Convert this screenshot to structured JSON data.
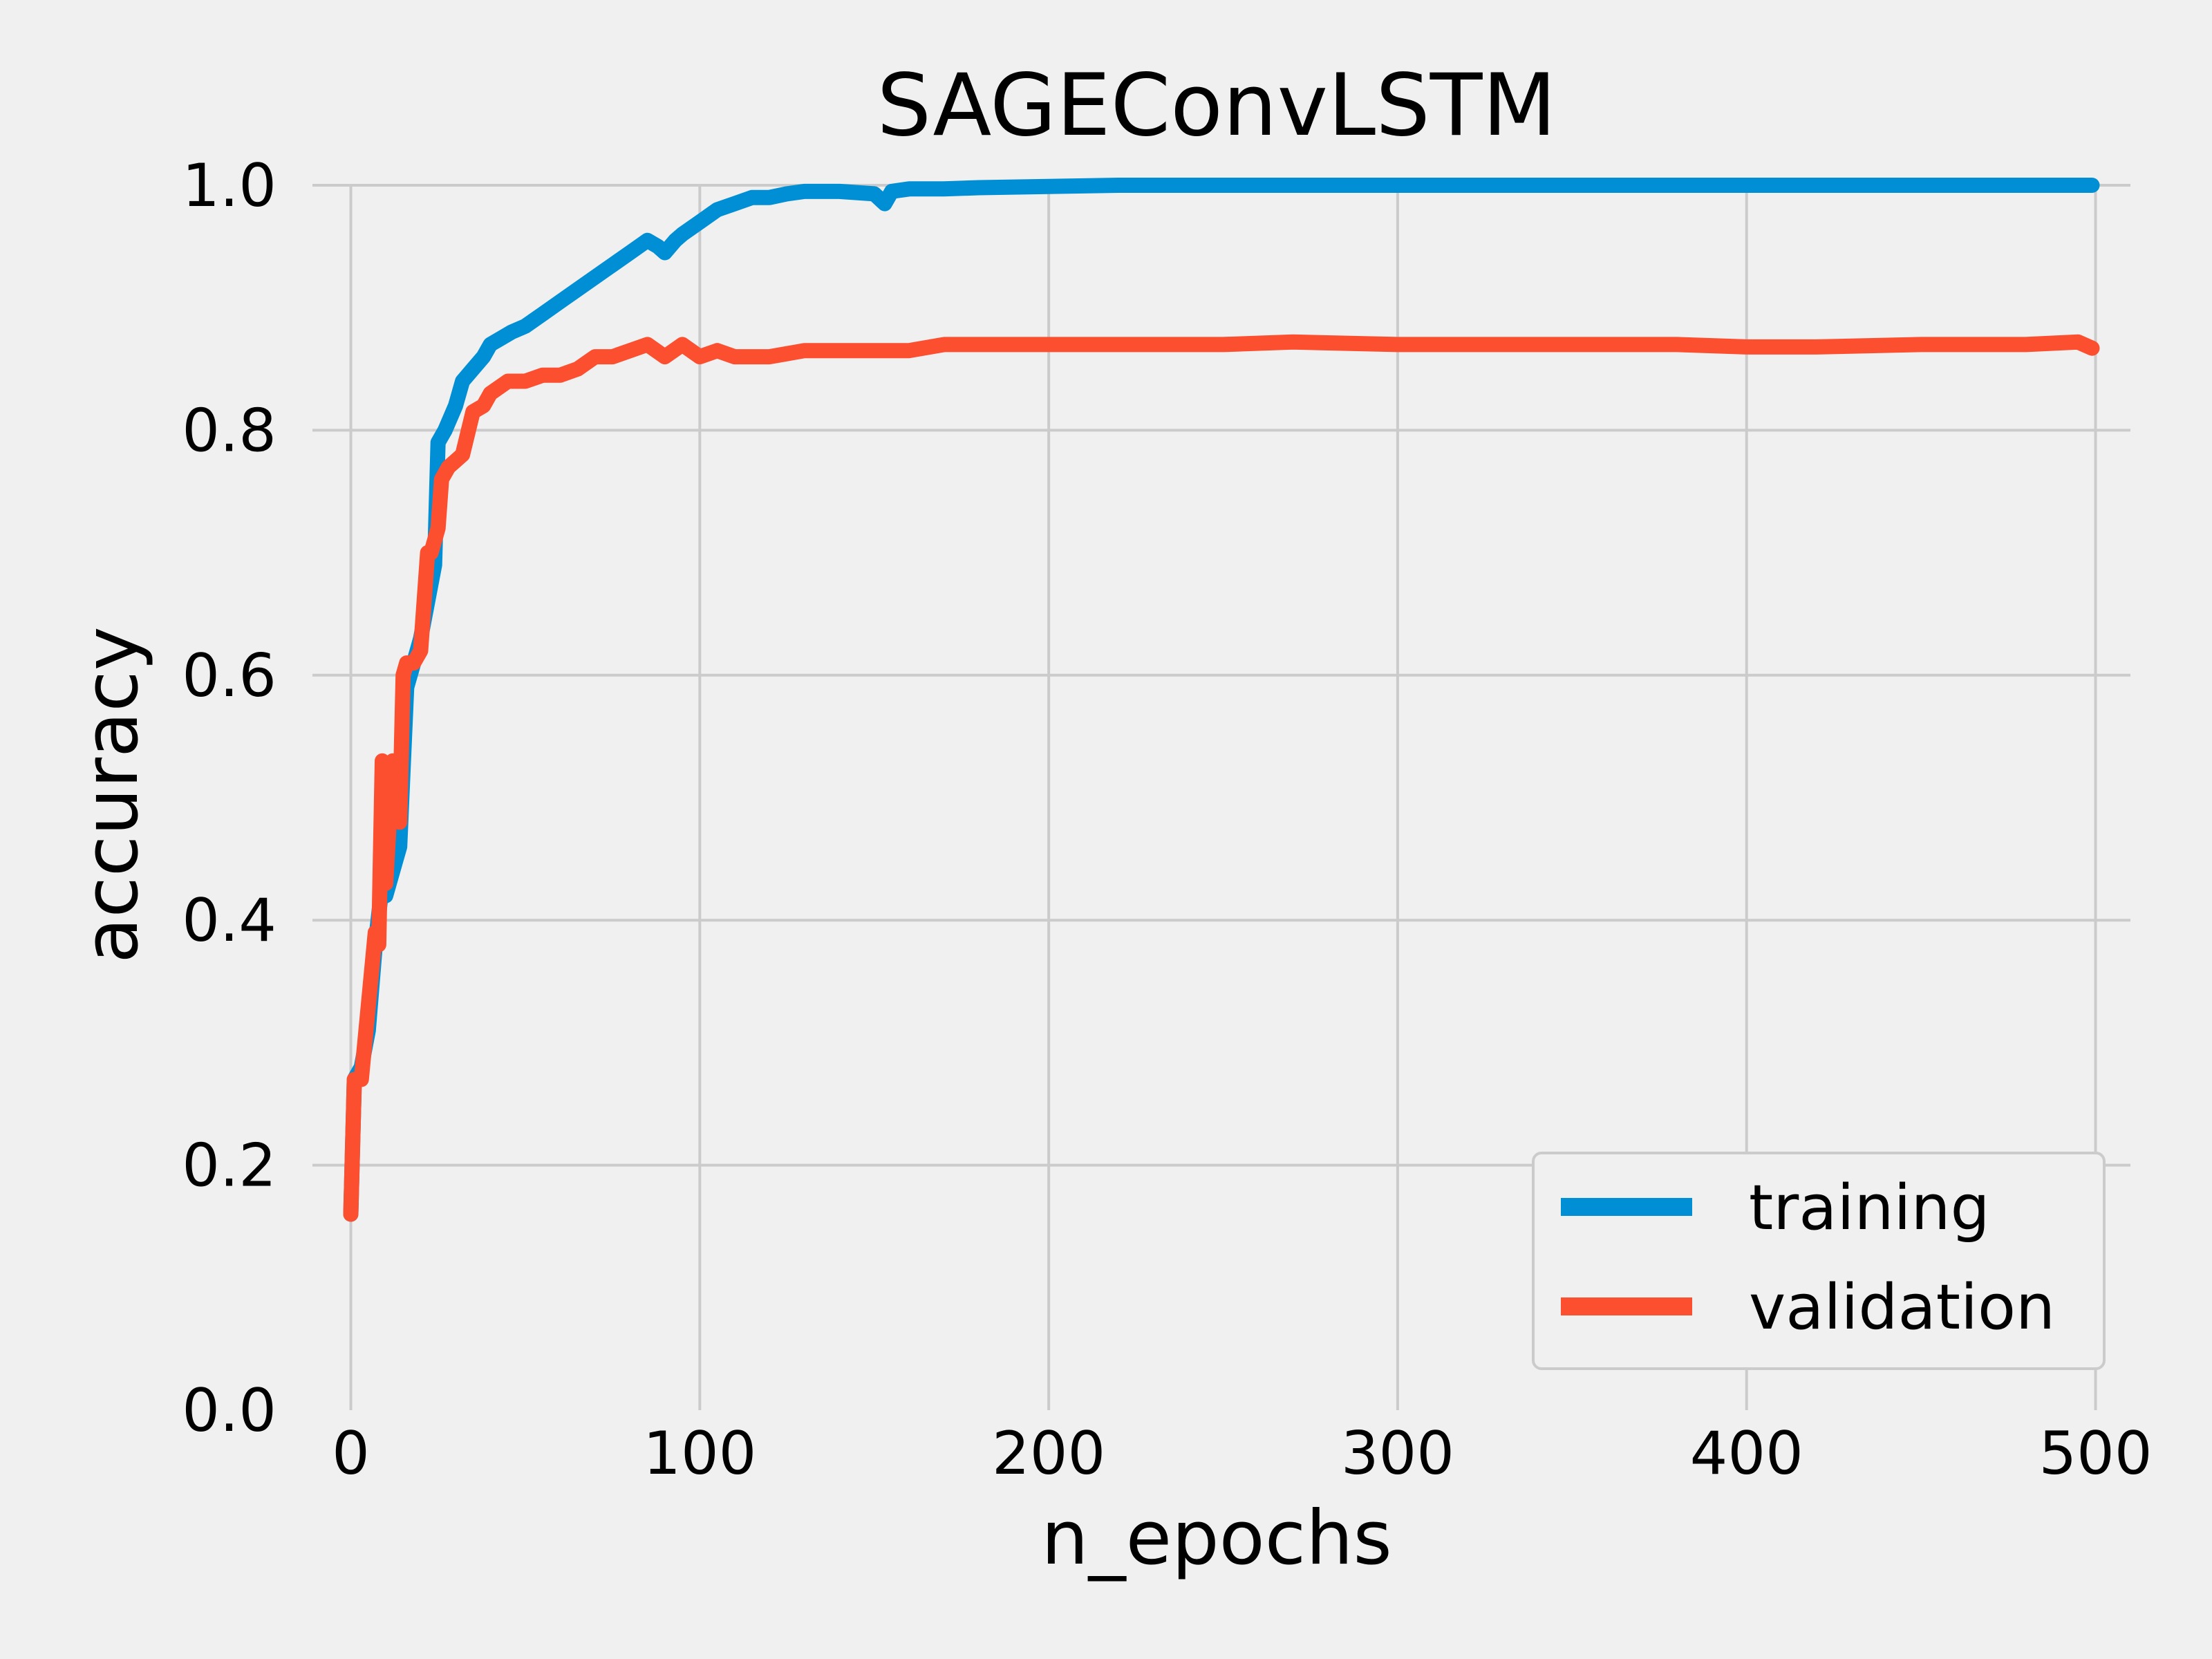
{
  "chart_data": {
    "type": "line",
    "title": "SAGEConvLSTM",
    "xlabel": "n_epochs",
    "ylabel": "accuracy",
    "xlim": [
      -11,
      510
    ],
    "ylim": [
      0.0,
      1.0
    ],
    "xticks": [
      0,
      100,
      200,
      300,
      400,
      500
    ],
    "yticks": [
      0.0,
      0.2,
      0.4,
      0.6,
      0.8,
      1.0
    ],
    "xtick_labels": [
      "0",
      "100",
      "200",
      "300",
      "400",
      "500"
    ],
    "ytick_labels": [
      "0.0",
      "0.2",
      "0.4",
      "0.6",
      "0.8",
      "1.0"
    ],
    "grid": true,
    "legend_position": "lower-right",
    "series": [
      {
        "name": "training",
        "color": "#008fd5",
        "x": [
          0,
          1,
          3,
          5,
          7,
          9,
          10,
          12,
          14,
          16,
          18,
          20,
          22,
          24,
          25,
          27,
          30,
          32,
          35,
          38,
          40,
          43,
          46,
          50,
          55,
          60,
          65,
          70,
          75,
          80,
          85,
          88,
          90,
          93,
          95,
          100,
          105,
          110,
          115,
          120,
          125,
          130,
          140,
          150,
          153,
          155,
          160,
          170,
          180,
          200,
          220,
          250,
          300,
          350,
          400,
          450,
          499
        ],
        "y": [
          0.16,
          0.27,
          0.28,
          0.31,
          0.38,
          0.43,
          0.42,
          0.44,
          0.46,
          0.59,
          0.61,
          0.63,
          0.66,
          0.69,
          0.79,
          0.8,
          0.82,
          0.84,
          0.85,
          0.86,
          0.87,
          0.875,
          0.88,
          0.885,
          0.895,
          0.905,
          0.915,
          0.925,
          0.935,
          0.945,
          0.955,
          0.95,
          0.945,
          0.955,
          0.96,
          0.97,
          0.98,
          0.985,
          0.99,
          0.99,
          0.993,
          0.995,
          0.995,
          0.993,
          0.985,
          0.995,
          0.997,
          0.997,
          0.998,
          0.999,
          1.0,
          1.0,
          1.0,
          1.0,
          1.0,
          1.0,
          1.0
        ]
      },
      {
        "name": "validation",
        "color": "#fc4f30",
        "x": [
          0,
          1,
          3,
          5,
          7,
          8,
          9,
          10,
          12,
          14,
          15,
          16,
          18,
          20,
          22,
          23,
          25,
          26,
          28,
          30,
          32,
          35,
          38,
          40,
          45,
          50,
          55,
          60,
          65,
          70,
          75,
          80,
          85,
          90,
          95,
          100,
          105,
          110,
          120,
          130,
          140,
          150,
          160,
          170,
          200,
          250,
          270,
          300,
          320,
          350,
          380,
          400,
          420,
          450,
          480,
          495,
          499
        ],
        "y": [
          0.16,
          0.27,
          0.27,
          0.33,
          0.39,
          0.38,
          0.53,
          0.43,
          0.53,
          0.48,
          0.6,
          0.61,
          0.61,
          0.62,
          0.7,
          0.7,
          0.72,
          0.76,
          0.77,
          0.775,
          0.78,
          0.815,
          0.82,
          0.83,
          0.84,
          0.84,
          0.845,
          0.845,
          0.85,
          0.86,
          0.86,
          0.865,
          0.87,
          0.86,
          0.87,
          0.86,
          0.865,
          0.86,
          0.86,
          0.865,
          0.865,
          0.865,
          0.865,
          0.87,
          0.87,
          0.87,
          0.872,
          0.87,
          0.87,
          0.87,
          0.87,
          0.868,
          0.868,
          0.87,
          0.87,
          0.872,
          0.867
        ]
      }
    ]
  }
}
